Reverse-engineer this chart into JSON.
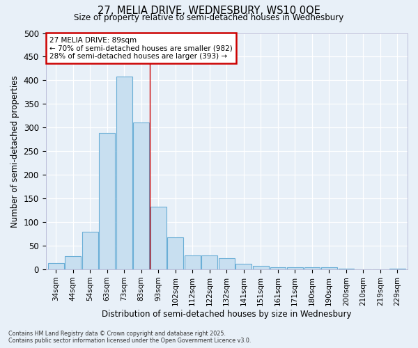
{
  "title_line1": "27, MELIA DRIVE, WEDNESBURY, WS10 0QE",
  "title_line2": "Size of property relative to semi-detached houses in Wednesbury",
  "xlabel": "Distribution of semi-detached houses by size in Wednesbury",
  "ylabel": "Number of semi-detached properties",
  "categories": [
    "34sqm",
    "44sqm",
    "54sqm",
    "63sqm",
    "73sqm",
    "83sqm",
    "93sqm",
    "102sqm",
    "112sqm",
    "122sqm",
    "132sqm",
    "141sqm",
    "151sqm",
    "161sqm",
    "171sqm",
    "180sqm",
    "190sqm",
    "200sqm",
    "210sqm",
    "219sqm",
    "229sqm"
  ],
  "values": [
    13,
    28,
    80,
    289,
    408,
    311,
    133,
    68,
    30,
    30,
    24,
    12,
    8,
    5,
    5,
    5,
    4,
    1,
    0,
    0,
    2
  ],
  "bar_color": "#c8dff0",
  "bar_edge_color": "#6aaed6",
  "vline_color": "#cc0000",
  "annotation_title": "27 MELIA DRIVE: 89sqm",
  "annotation_line2": "← 70% of semi-detached houses are smaller (982)",
  "annotation_line3": "28% of semi-detached houses are larger (393) →",
  "annotation_box_color": "#ffffff",
  "annotation_box_edge": "#cc0000",
  "footer_line1": "Contains HM Land Registry data © Crown copyright and database right 2025.",
  "footer_line2": "Contains public sector information licensed under the Open Government Licence v3.0.",
  "bg_color": "#e8f0f8",
  "plot_bg_color": "#e8f0f8",
  "ylim": [
    0,
    500
  ],
  "yticks": [
    0,
    50,
    100,
    150,
    200,
    250,
    300,
    350,
    400,
    450,
    500
  ],
  "vline_pos": 5.5
}
